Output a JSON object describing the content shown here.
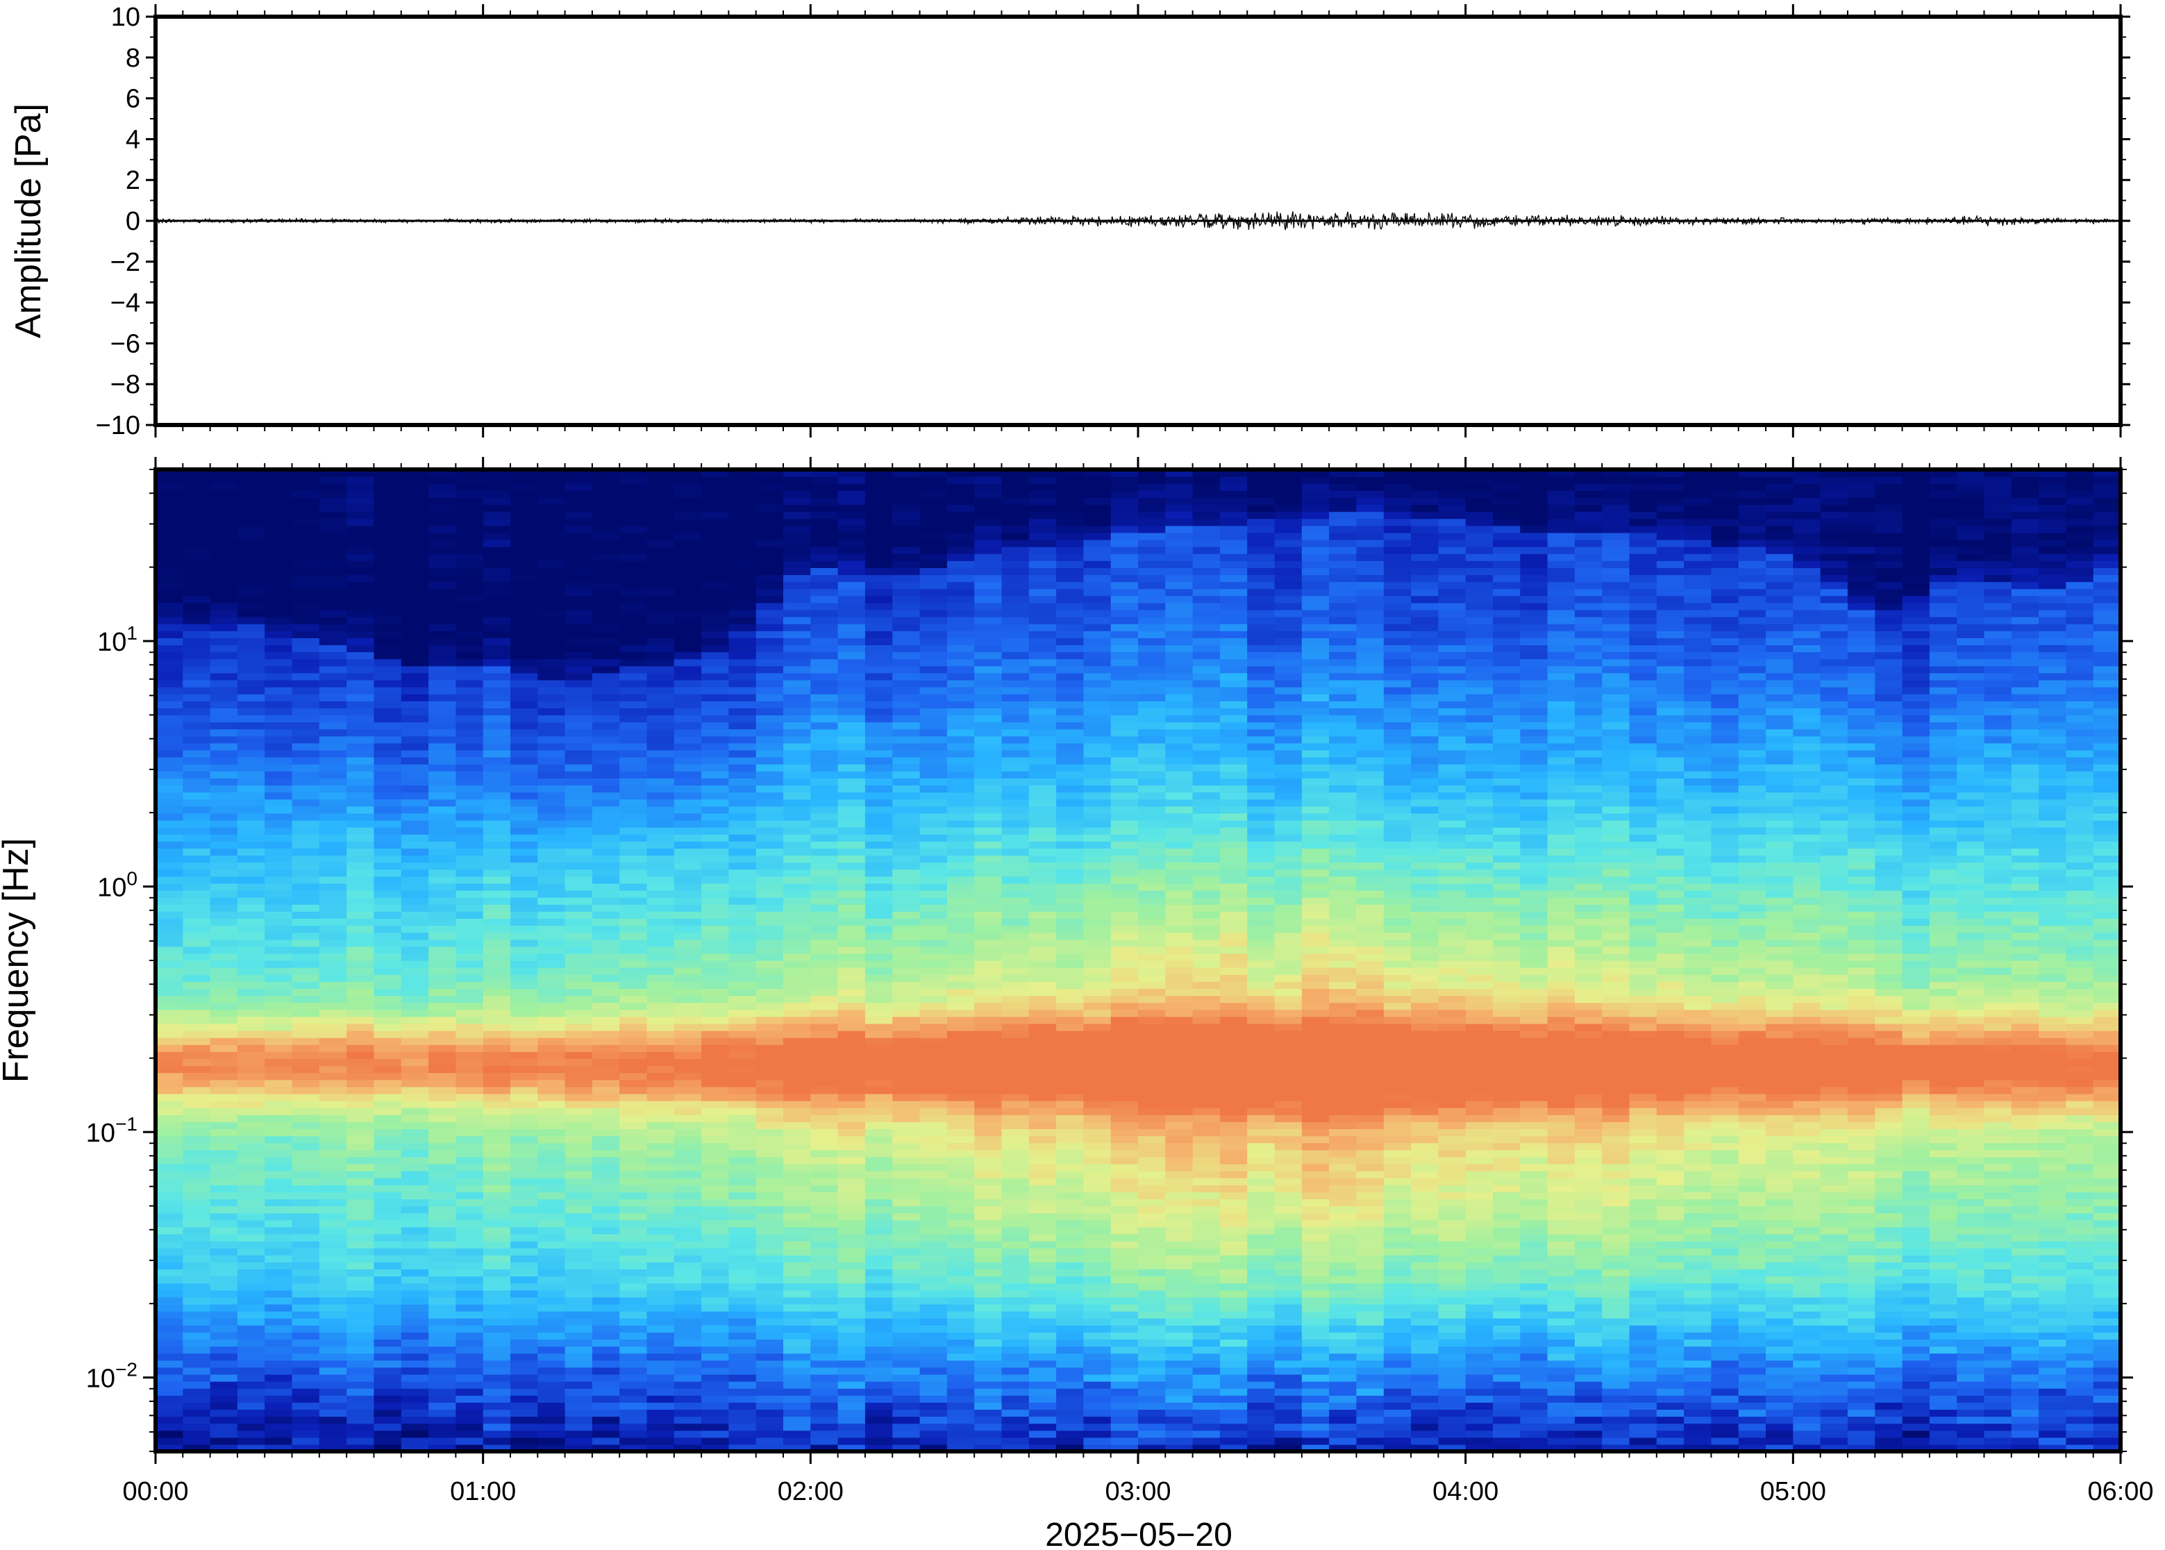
{
  "chart_data": [
    {
      "type": "line",
      "panel": "waveform",
      "ylabel": "Amplitude [Pa]",
      "ylim": [
        -10,
        10
      ],
      "yticks": [
        10,
        8,
        6,
        4,
        2,
        0,
        -2,
        -4,
        -6,
        -8,
        -10
      ],
      "ytick_labels": [
        "10",
        "8",
        "6",
        "4",
        "2",
        "0",
        "−2",
        "−4",
        "−6",
        "−8",
        "−10"
      ],
      "xlim_hours": [
        0,
        6
      ],
      "series": [
        {
          "x_hours": [
            0.0,
            0.25,
            0.5,
            0.75,
            1.0,
            1.25,
            1.5,
            1.75,
            2.0,
            2.25,
            2.5,
            2.75,
            3.0,
            3.25,
            3.5,
            3.6,
            3.75,
            4.0,
            4.25,
            4.5,
            4.75,
            5.0,
            5.25,
            5.5,
            5.6,
            5.75,
            6.0
          ],
          "envelope_pa": [
            0.1,
            0.1,
            0.1,
            0.1,
            0.1,
            0.1,
            0.1,
            0.1,
            0.1,
            0.1,
            0.15,
            0.2,
            0.3,
            0.4,
            0.45,
            0.5,
            0.4,
            0.35,
            0.3,
            0.25,
            0.2,
            0.15,
            0.15,
            0.2,
            0.3,
            0.15,
            0.1
          ]
        }
      ],
      "grid": false
    },
    {
      "type": "heatmap",
      "panel": "spectrogram",
      "ylabel": "Frequency [Hz]",
      "yscale": "log",
      "ylim_hz": [
        0.005,
        50
      ],
      "yticks_hz": [
        10,
        1,
        0.1,
        0.01
      ],
      "ytick_labels": [
        {
          "base": "10",
          "exp": "1"
        },
        {
          "base": "10",
          "exp": "0"
        },
        {
          "base": "10",
          "exp": "−1"
        },
        {
          "base": "10",
          "exp": "−2"
        }
      ],
      "colormap": "jet",
      "colormap_stops": [
        "#000a6e",
        "#0a1eb4",
        "#1e64f0",
        "#28b4ff",
        "#5ae6e6",
        "#a0f0a0",
        "#e6f08c",
        "#f5b46e",
        "#f07846"
      ],
      "x_hours": [
        0.0,
        0.25,
        0.5,
        0.75,
        1.0,
        1.25,
        1.5,
        1.75,
        2.0,
        2.25,
        2.5,
        2.75,
        3.0,
        3.25,
        3.5,
        3.75,
        4.0,
        4.25,
        4.5,
        4.75,
        5.0,
        5.25,
        5.5,
        5.75,
        6.0
      ],
      "upper_energy_cutoff_hz": [
        12,
        12,
        10,
        8,
        8,
        7,
        8,
        9,
        20,
        18,
        22,
        25,
        28,
        30,
        32,
        35,
        30,
        28,
        28,
        25,
        22,
        12,
        18,
        16,
        20
      ],
      "peak_band_hz": [
        0.18,
        0.2
      ],
      "xticks": [
        "00:00",
        "01:00",
        "02:00",
        "03:00",
        "04:00",
        "05:00",
        "06:00"
      ],
      "xlabel": "2025−05−20"
    }
  ]
}
